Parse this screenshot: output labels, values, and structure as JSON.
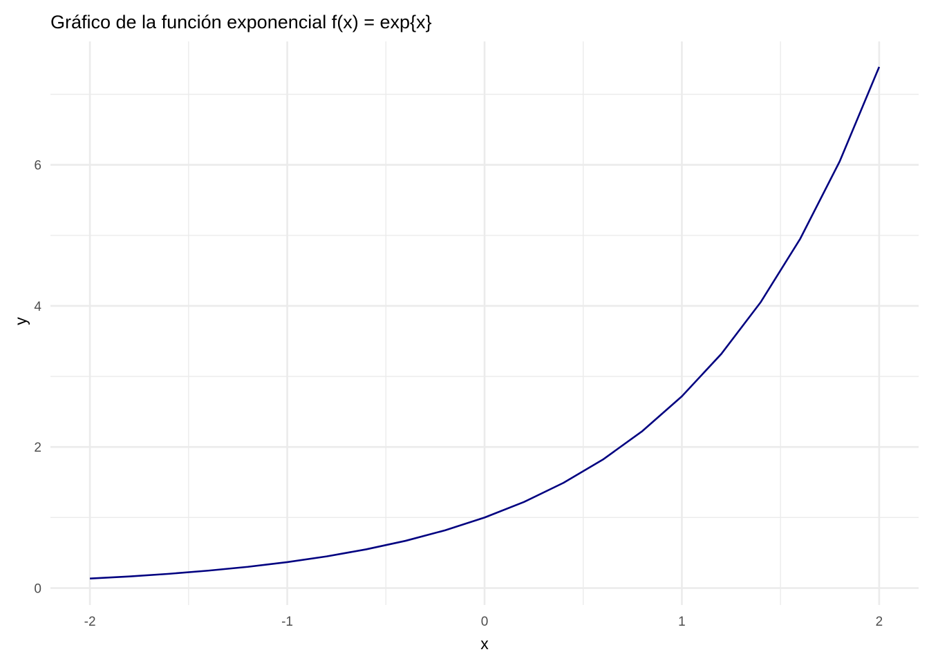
{
  "chart_data": {
    "type": "line",
    "title": "Gráfico de la función exponencial f(x) = exp{x}",
    "xlabel": "x",
    "ylabel": "y",
    "xlim": [
      -2.2,
      2.2
    ],
    "ylim": [
      -0.24,
      7.75
    ],
    "x_ticks": [
      -2,
      -1,
      0,
      1,
      2
    ],
    "x_tick_labels": [
      "-2",
      "-1",
      "0",
      "1",
      "2"
    ],
    "y_ticks": [
      0,
      2,
      4,
      6
    ],
    "y_tick_labels": [
      "0",
      "2",
      "4",
      "6"
    ],
    "grid": true,
    "legend": "none",
    "series": [
      {
        "color": "#000080",
        "x": [
          -2.0,
          -1.8,
          -1.6,
          -1.4,
          -1.2,
          -1.0,
          -0.8,
          -0.6,
          -0.4,
          -0.2,
          0.0,
          0.2,
          0.4,
          0.6,
          0.8,
          1.0,
          1.2,
          1.4,
          1.6,
          1.8,
          2.0
        ],
        "y": [
          0.135,
          0.165,
          0.202,
          0.247,
          0.301,
          0.368,
          0.449,
          0.549,
          0.67,
          0.819,
          1.0,
          1.221,
          1.492,
          1.822,
          2.226,
          2.718,
          3.32,
          4.055,
          4.953,
          6.05,
          7.389
        ]
      }
    ]
  }
}
